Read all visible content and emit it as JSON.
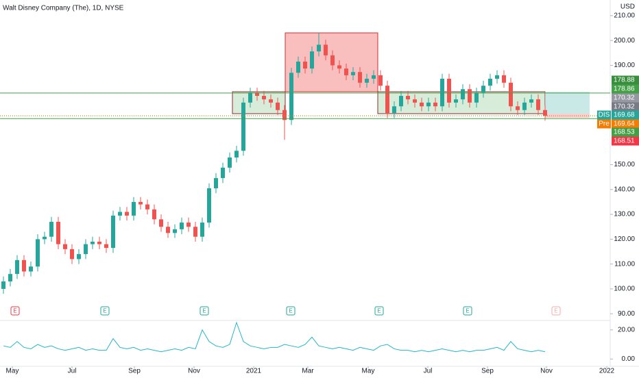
{
  "chart_data": {
    "type": "candlestick",
    "title": "Walt Disney Company (The), 1D, NYSE",
    "currency": "USD",
    "open": [
      100,
      103,
      106,
      111.6,
      107,
      109,
      120,
      121,
      127,
      118,
      116,
      112,
      114,
      118,
      119,
      118,
      116.5,
      129.5,
      131,
      129.5,
      135,
      134,
      132,
      128,
      125,
      122.5,
      124,
      126.7,
      125,
      121,
      126.7,
      140.5,
      144.6,
      148.8,
      152.9,
      155.6,
      175,
      179,
      177.7,
      176.3,
      175,
      172,
      168,
      187,
      191.5,
      188.7,
      195.6,
      198.3,
      194,
      190,
      188.7,
      186,
      187.3,
      183,
      184.6,
      186,
      181.8,
      170.8,
      173.5,
      177.7,
      176.3,
      175,
      173.5,
      175,
      173.5,
      184.6,
      175,
      176.3,
      180.4,
      175,
      179,
      181.8,
      184.6,
      186,
      183,
      173.5,
      172,
      175,
      176.3,
      172
    ],
    "high": [
      105,
      108,
      113.6,
      113.6,
      111,
      122,
      123,
      129,
      129,
      120,
      118,
      116,
      120,
      121,
      121,
      120,
      131.5,
      133,
      133,
      137,
      137,
      136,
      134,
      130,
      127,
      126,
      128.7,
      128.7,
      127,
      128.7,
      142.5,
      146.6,
      150.8,
      154.9,
      157.6,
      177,
      181,
      181,
      179.7,
      178.3,
      177,
      174,
      189,
      193.5,
      193.5,
      197.6,
      203,
      200.3,
      196,
      192,
      190.7,
      189.3,
      189.3,
      186.6,
      188,
      188,
      183.8,
      175.5,
      179.7,
      179.7,
      178.3,
      177,
      177,
      177,
      186.6,
      186.6,
      178.3,
      182.4,
      182.4,
      181,
      183.8,
      186.6,
      188,
      188,
      185,
      175.5,
      177,
      178.3,
      178.3,
      174
    ],
    "low": [
      98,
      101,
      104,
      105,
      105,
      107,
      118,
      119,
      116,
      114,
      110,
      110,
      112,
      116,
      116,
      114.5,
      114.5,
      127.5,
      127.5,
      127.5,
      132,
      130,
      126,
      123,
      120.5,
      120.5,
      122,
      123,
      119,
      119,
      124.7,
      138.5,
      142.6,
      146.8,
      150.9,
      153.6,
      173,
      175.7,
      174.3,
      173,
      170,
      160,
      166,
      185,
      186.7,
      186.7,
      193.6,
      192,
      188,
      186.7,
      184,
      184,
      181,
      181,
      182.6,
      179.8,
      168.8,
      168.8,
      171.5,
      174.3,
      173,
      171.5,
      171.5,
      171.5,
      171.5,
      173,
      173,
      174.3,
      173,
      173,
      177,
      179.8,
      182.6,
      181,
      171.5,
      170,
      170,
      173,
      170,
      167.7
    ],
    "close": [
      103,
      106,
      111.6,
      107,
      109,
      120,
      121,
      127,
      118,
      116,
      112,
      114,
      118,
      119,
      118,
      116.5,
      129.5,
      131,
      129.5,
      135,
      134,
      132,
      128,
      125,
      122.5,
      124,
      126.7,
      125,
      121,
      126.7,
      140.5,
      144.6,
      148.8,
      152.9,
      155.6,
      175,
      179,
      177.7,
      176.3,
      175,
      172,
      168,
      187,
      191.5,
      188.7,
      195.6,
      198.3,
      194,
      190,
      188.7,
      186,
      187.3,
      183,
      184.6,
      186,
      181.8,
      170.8,
      173.5,
      177.7,
      176.3,
      175,
      173.5,
      175,
      173.5,
      184.6,
      175,
      176.3,
      180.4,
      175,
      179,
      181.8,
      184.6,
      186,
      183,
      173.5,
      172,
      175,
      176.3,
      172,
      169.68
    ],
    "volume": [
      9,
      8,
      12,
      8,
      7,
      10,
      8,
      9,
      7,
      6,
      7,
      8,
      6,
      7,
      6,
      6,
      14,
      8,
      7,
      8,
      6,
      7,
      6,
      5,
      6,
      7,
      6,
      8,
      7,
      20,
      12,
      9,
      8,
      10,
      25,
      12,
      9,
      8,
      7,
      8,
      8,
      10,
      9,
      8,
      10,
      15,
      9,
      8,
      7,
      8,
      7,
      6,
      8,
      7,
      6,
      9,
      10,
      7,
      6,
      6,
      5,
      6,
      5,
      6,
      7,
      6,
      5,
      6,
      5,
      6,
      6,
      7,
      8,
      6,
      12,
      7,
      6,
      5,
      6,
      5
    ],
    "up_color": "#26a69a",
    "down_color": "#ef5350",
    "volume_color": "#22b5c9",
    "xlim": [
      -0.5,
      88.5
    ],
    "xticks": [
      {
        "value": 1.3,
        "label": "May"
      },
      {
        "value": 10,
        "label": "Jul"
      },
      {
        "value": 19.1,
        "label": "Sep"
      },
      {
        "value": 27.8,
        "label": "Nov"
      },
      {
        "value": 36.5,
        "label": "2021"
      },
      {
        "value": 44.4,
        "label": "Mar"
      },
      {
        "value": 53.2,
        "label": "May"
      },
      {
        "value": 61.9,
        "label": "Jul"
      },
      {
        "value": 70.6,
        "label": "Sep"
      },
      {
        "value": 79.2,
        "label": "Nov"
      },
      {
        "value": 88,
        "label": "2022"
      }
    ],
    "ylim": [
      87.3,
      216.3
    ],
    "yticks": [
      {
        "value": 90,
        "label": "90.00"
      },
      {
        "value": 100,
        "label": "100.00"
      },
      {
        "value": 110,
        "label": "110.00"
      },
      {
        "value": 120,
        "label": "120.00"
      },
      {
        "value": 130,
        "label": "130.00"
      },
      {
        "value": 140,
        "label": "140.00"
      },
      {
        "value": 150,
        "label": "150.00"
      },
      {
        "value": 190,
        "label": "190.00"
      },
      {
        "value": 200,
        "label": "200.00"
      },
      {
        "value": 210,
        "label": "210.00"
      }
    ],
    "y2lim": [
      -5,
      26
    ],
    "y2ticks": [
      {
        "value": 0,
        "label": "0.00"
      },
      {
        "value": 20,
        "label": "20.00"
      }
    ],
    "price_labels": [
      {
        "value": 178.88,
        "color": "#388e3c"
      },
      {
        "value": 178.86,
        "color": "#43a047"
      },
      {
        "value": 170.32,
        "color": "#9598a1"
      },
      {
        "value": 170.32,
        "color": "#787b86"
      },
      {
        "tag": "DIS",
        "value": 169.68,
        "color": "#26a69a"
      },
      {
        "tag": "Pre",
        "value": 169.64,
        "color": "#f57c00"
      },
      {
        "value": 168.53,
        "color": "#43a047"
      },
      {
        "value": 168.51,
        "color": "#f23645"
      }
    ],
    "earnings_label": "E"
  }
}
